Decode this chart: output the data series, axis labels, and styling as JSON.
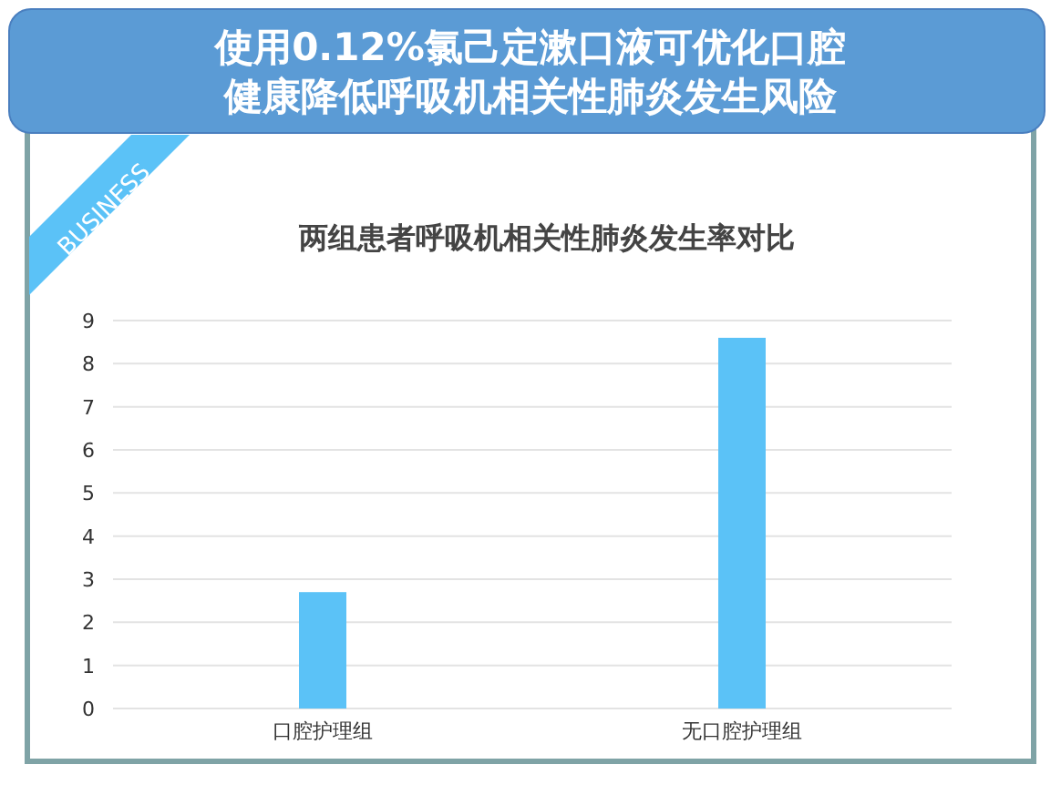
{
  "chart_data": {
    "type": "bar",
    "title": "使用0.12%氯己定漱口液可优化口腔健康降低呼吸机相关性肺炎发生风险",
    "subtitle": "两组患者呼吸机相关性肺炎发生率对比",
    "categories": [
      "口腔护理组",
      "无口腔护理组"
    ],
    "values": [
      2.7,
      8.6
    ],
    "color": "#5bc2f7",
    "ylim": [
      0,
      9
    ],
    "yticks": [
      0,
      1,
      2,
      3,
      4,
      5,
      6,
      7,
      8,
      9
    ],
    "grid": "y",
    "annotations": [
      "BUSINESS"
    ]
  }
}
